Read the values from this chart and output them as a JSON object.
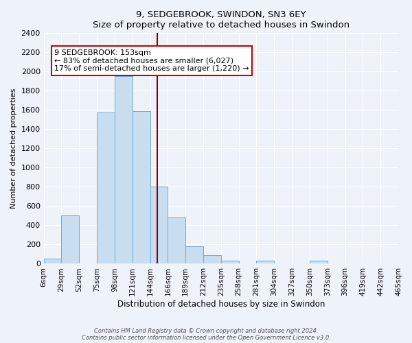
{
  "title": "9, SEDGEBROOK, SWINDON, SN3 6EY",
  "subtitle": "Size of property relative to detached houses in Swindon",
  "xlabel": "Distribution of detached houses by size in Swindon",
  "ylabel": "Number of detached properties",
  "bin_labels": [
    "6sqm",
    "29sqm",
    "52sqm",
    "75sqm",
    "98sqm",
    "121sqm",
    "144sqm",
    "166sqm",
    "189sqm",
    "212sqm",
    "235sqm",
    "258sqm",
    "281sqm",
    "304sqm",
    "327sqm",
    "350sqm",
    "373sqm",
    "396sqm",
    "419sqm",
    "442sqm",
    "465sqm"
  ],
  "bar_values": [
    50,
    500,
    0,
    1575,
    1950,
    1590,
    800,
    480,
    185,
    90,
    30,
    0,
    30,
    0,
    0,
    30,
    0,
    0,
    0,
    0
  ],
  "bar_color": "#c9ddf0",
  "bar_edgecolor": "#6baed6",
  "vline_index": 6.42,
  "vline_color": "#8b0000",
  "annotation_title": "9 SEDGEBROOK: 153sqm",
  "annotation_line1": "← 83% of detached houses are smaller (6,027)",
  "annotation_line2": "17% of semi-detached houses are larger (1,220) →",
  "annotation_box_color": "#ffffff",
  "annotation_box_edgecolor": "#cc0000",
  "ylim": [
    0,
    2400
  ],
  "yticks": [
    0,
    200,
    400,
    600,
    800,
    1000,
    1200,
    1400,
    1600,
    1800,
    2000,
    2200,
    2400
  ],
  "footer1": "Contains HM Land Registry data © Crown copyright and database right 2024.",
  "footer2": "Contains public sector information licensed under the Open Government Licence v3.0.",
  "bg_color": "#eef2f9"
}
